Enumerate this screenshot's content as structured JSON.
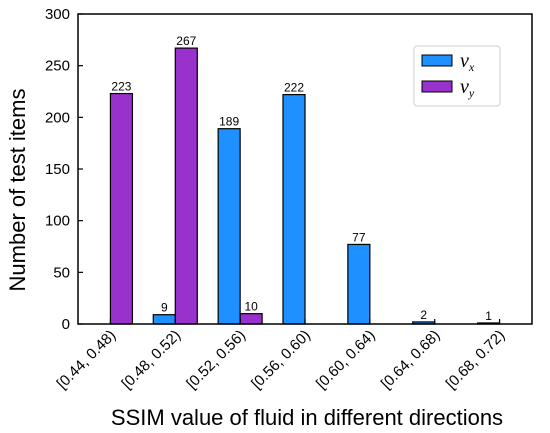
{
  "chart_data": {
    "type": "bar",
    "xlabel": "SSIM value of fluid in different directions",
    "ylabel": "Number of test items",
    "ylim": [
      0,
      300
    ],
    "yticks": [
      0,
      50,
      100,
      150,
      200,
      250,
      300
    ],
    "categories": [
      "[0.44, 0.48)",
      "[0.48, 0.52)",
      "[0.52, 0.56)",
      "[0.56, 0.60)",
      "[0.60, 0.64)",
      "[0.64, 0.68)",
      "[0.68, 0.72)"
    ],
    "series": [
      {
        "name": "v",
        "subscript": "x",
        "color": "#1e90ff",
        "values": [
          0,
          9,
          189,
          222,
          77,
          2,
          1
        ]
      },
      {
        "name": "v",
        "subscript": "y",
        "color": "#9932cc",
        "values": [
          223,
          267,
          10,
          0,
          0,
          0,
          0
        ]
      }
    ],
    "legend_position": "top-right",
    "grid": false
  }
}
